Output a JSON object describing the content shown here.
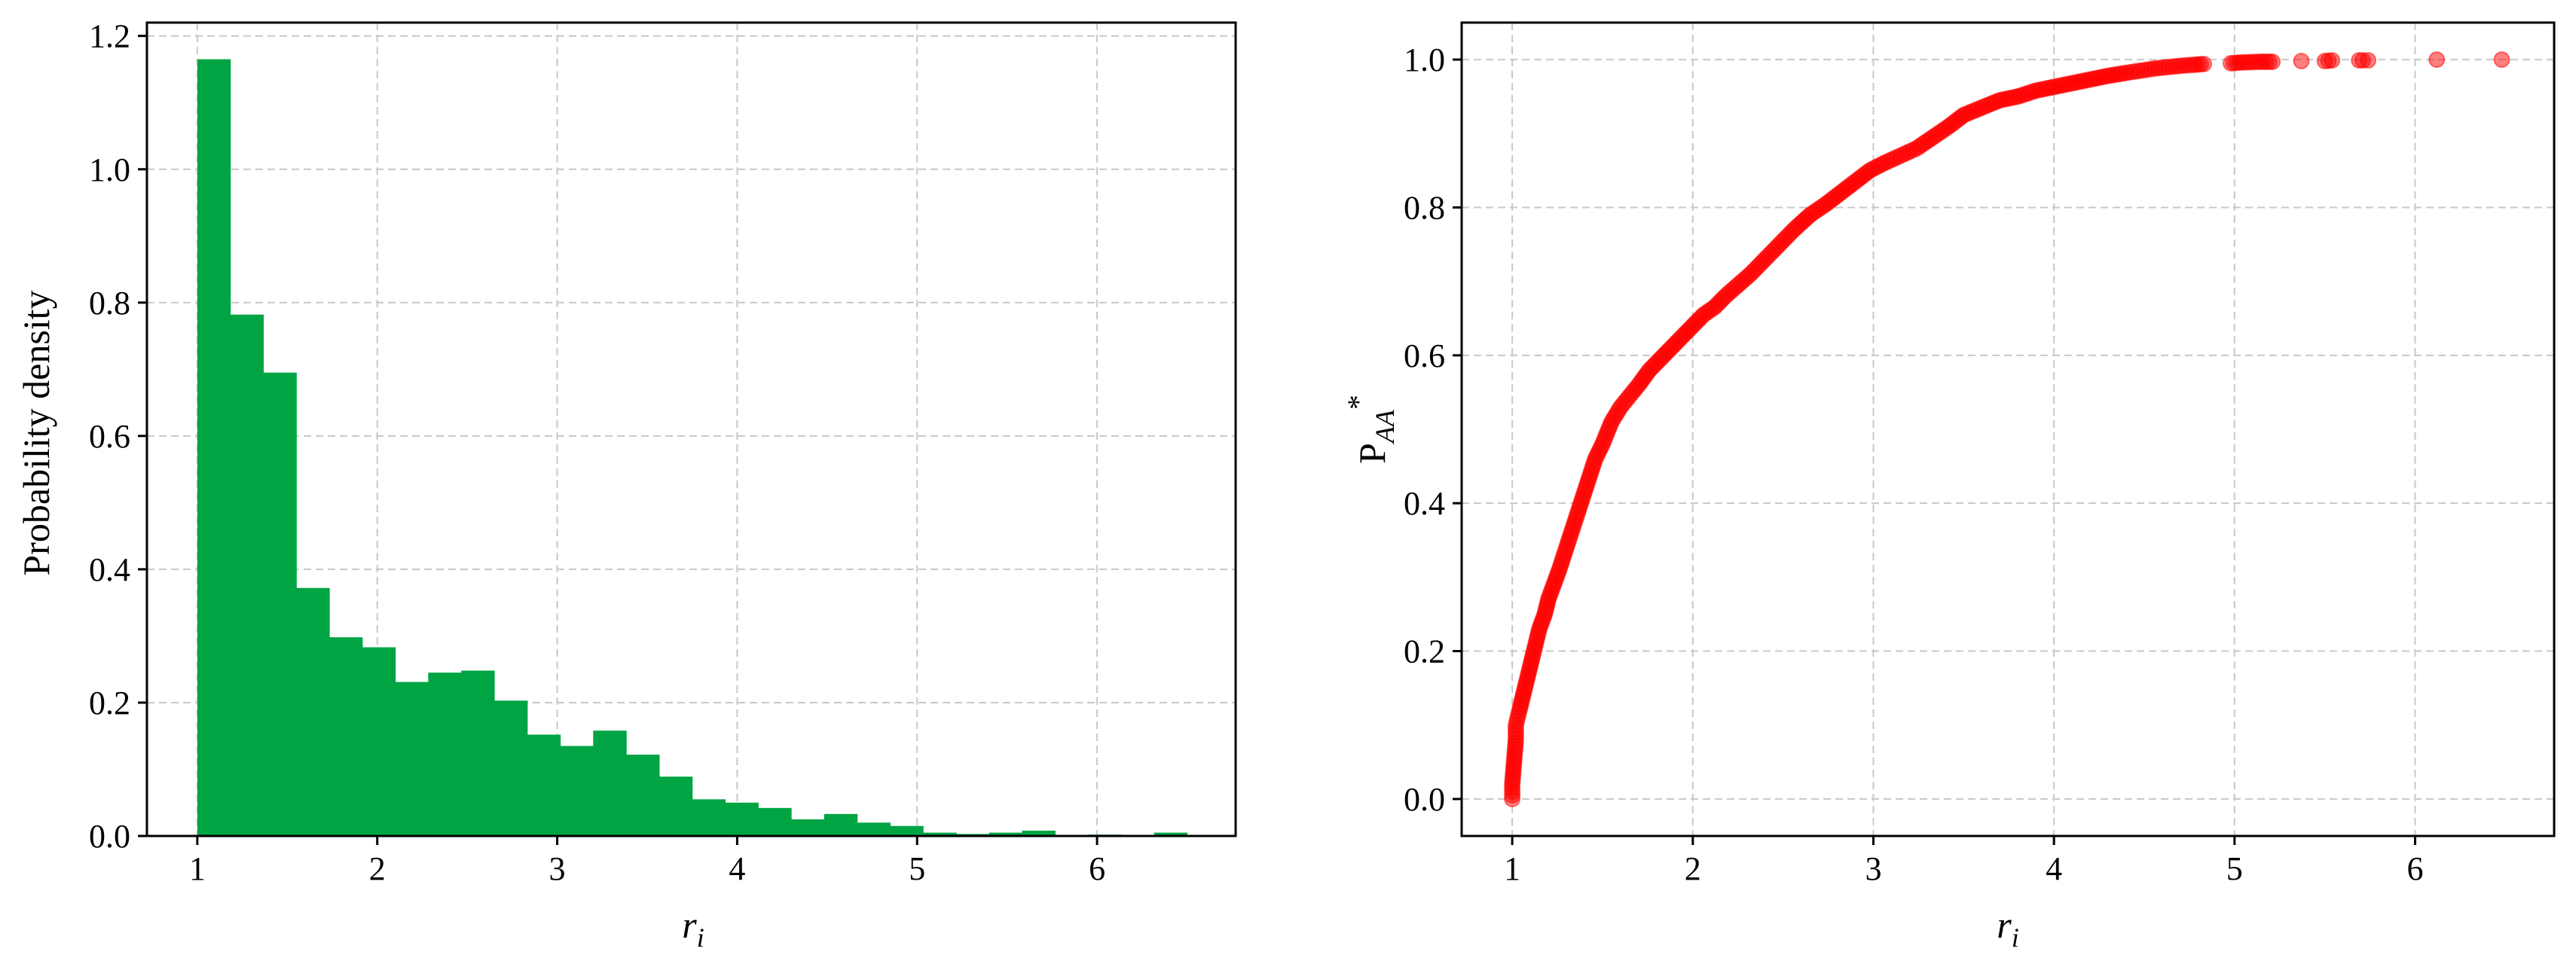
{
  "chart_data": [
    {
      "type": "bar",
      "subtype": "histogram",
      "xlabel_main": "r",
      "xlabel_sub": "i",
      "ylabel": "Probability density",
      "xlim": [
        0.72,
        6.77
      ],
      "ylim": [
        0,
        1.22
      ],
      "xticks": [
        1,
        2,
        3,
        4,
        5,
        6
      ],
      "yticks": [
        0.0,
        0.2,
        0.4,
        0.6,
        0.8,
        1.0,
        1.2
      ],
      "xtick_labels": [
        "1",
        "2",
        "3",
        "4",
        "5",
        "6"
      ],
      "ytick_labels": [
        "0.0",
        "0.2",
        "0.4",
        "0.6",
        "0.8",
        "1.0",
        "1.2"
      ],
      "grid": true,
      "bar_color": "#00a443",
      "bin_edges": [
        1.0,
        1.1833,
        1.3667,
        1.55,
        1.7333,
        1.9167,
        2.1,
        2.2833,
        2.4667,
        2.65,
        2.8333,
        3.0167,
        3.2,
        3.3833,
        3.5667,
        3.75,
        3.9333,
        4.1167,
        4.3,
        4.4833,
        4.6667,
        4.85,
        5.0333,
        5.2167,
        5.4,
        5.5833,
        5.7667,
        5.95,
        6.1333,
        6.3167,
        6.5
      ],
      "values": [
        1.165,
        0.782,
        0.695,
        0.372,
        0.298,
        0.283,
        0.231,
        0.245,
        0.248,
        0.203,
        0.152,
        0.135,
        0.158,
        0.122,
        0.089,
        0.055,
        0.05,
        0.042,
        0.025,
        0.033,
        0.02,
        0.015,
        0.005,
        0.003,
        0.005,
        0.008,
        0.0,
        0.002,
        0.0,
        0.005
      ]
    },
    {
      "type": "scatter",
      "xlabel_main": "r",
      "xlabel_sub": "i",
      "ylabel_main": "P",
      "ylabel_sub": "AA",
      "ylabel_sup": "*",
      "xlim": [
        0.72,
        6.77
      ],
      "ylim": [
        -0.05,
        1.05
      ],
      "xticks": [
        1,
        2,
        3,
        4,
        5,
        6
      ],
      "yticks": [
        0.0,
        0.2,
        0.4,
        0.6,
        0.8,
        1.0
      ],
      "xtick_labels": [
        "1",
        "2",
        "3",
        "4",
        "5",
        "6"
      ],
      "ytick_labels": [
        "0.0",
        "0.2",
        "0.4",
        "0.6",
        "0.8",
        "1.0"
      ],
      "grid": true,
      "marker_color": "#ff0000",
      "marker_alpha": 0.5,
      "x": [
        1.0,
        1.0,
        1.01,
        1.02,
        1.02,
        1.03,
        1.04,
        1.06,
        1.08,
        1.1,
        1.12,
        1.15,
        1.18,
        1.2,
        1.23,
        1.26,
        1.3,
        1.34,
        1.38,
        1.42,
        1.46,
        1.5,
        1.55,
        1.6,
        1.65,
        1.7,
        1.76,
        1.82,
        1.88,
        1.94,
        2.0,
        2.06,
        2.12,
        2.18,
        2.25,
        2.32,
        2.4,
        2.48,
        2.56,
        2.65,
        2.74,
        2.82,
        2.9,
        2.98,
        3.06,
        3.15,
        3.24,
        3.33,
        3.42,
        3.5,
        3.6,
        3.7,
        3.8,
        3.9,
        4.0,
        4.1,
        4.2,
        4.3,
        4.4,
        4.48,
        4.56,
        4.64,
        4.72,
        4.78,
        4.83,
        4.98,
        5.03,
        5.14,
        5.21,
        5.37,
        5.5,
        5.54,
        5.69,
        5.71,
        5.74,
        6.12,
        6.48
      ],
      "y": [
        0.0,
        0.02,
        0.05,
        0.08,
        0.1,
        0.11,
        0.12,
        0.14,
        0.16,
        0.18,
        0.2,
        0.23,
        0.25,
        0.27,
        0.29,
        0.31,
        0.34,
        0.37,
        0.4,
        0.43,
        0.46,
        0.48,
        0.51,
        0.53,
        0.545,
        0.56,
        0.58,
        0.595,
        0.61,
        0.625,
        0.64,
        0.655,
        0.665,
        0.68,
        0.695,
        0.71,
        0.73,
        0.75,
        0.77,
        0.79,
        0.805,
        0.82,
        0.835,
        0.85,
        0.86,
        0.87,
        0.88,
        0.895,
        0.91,
        0.925,
        0.935,
        0.945,
        0.95,
        0.958,
        0.963,
        0.968,
        0.973,
        0.978,
        0.982,
        0.985,
        0.988,
        0.99,
        0.992,
        0.993,
        0.994,
        0.995,
        0.996,
        0.997,
        0.997,
        0.998,
        0.998,
        0.999,
        0.999,
        0.999,
        0.999,
        1.0,
        1.0
      ]
    }
  ]
}
